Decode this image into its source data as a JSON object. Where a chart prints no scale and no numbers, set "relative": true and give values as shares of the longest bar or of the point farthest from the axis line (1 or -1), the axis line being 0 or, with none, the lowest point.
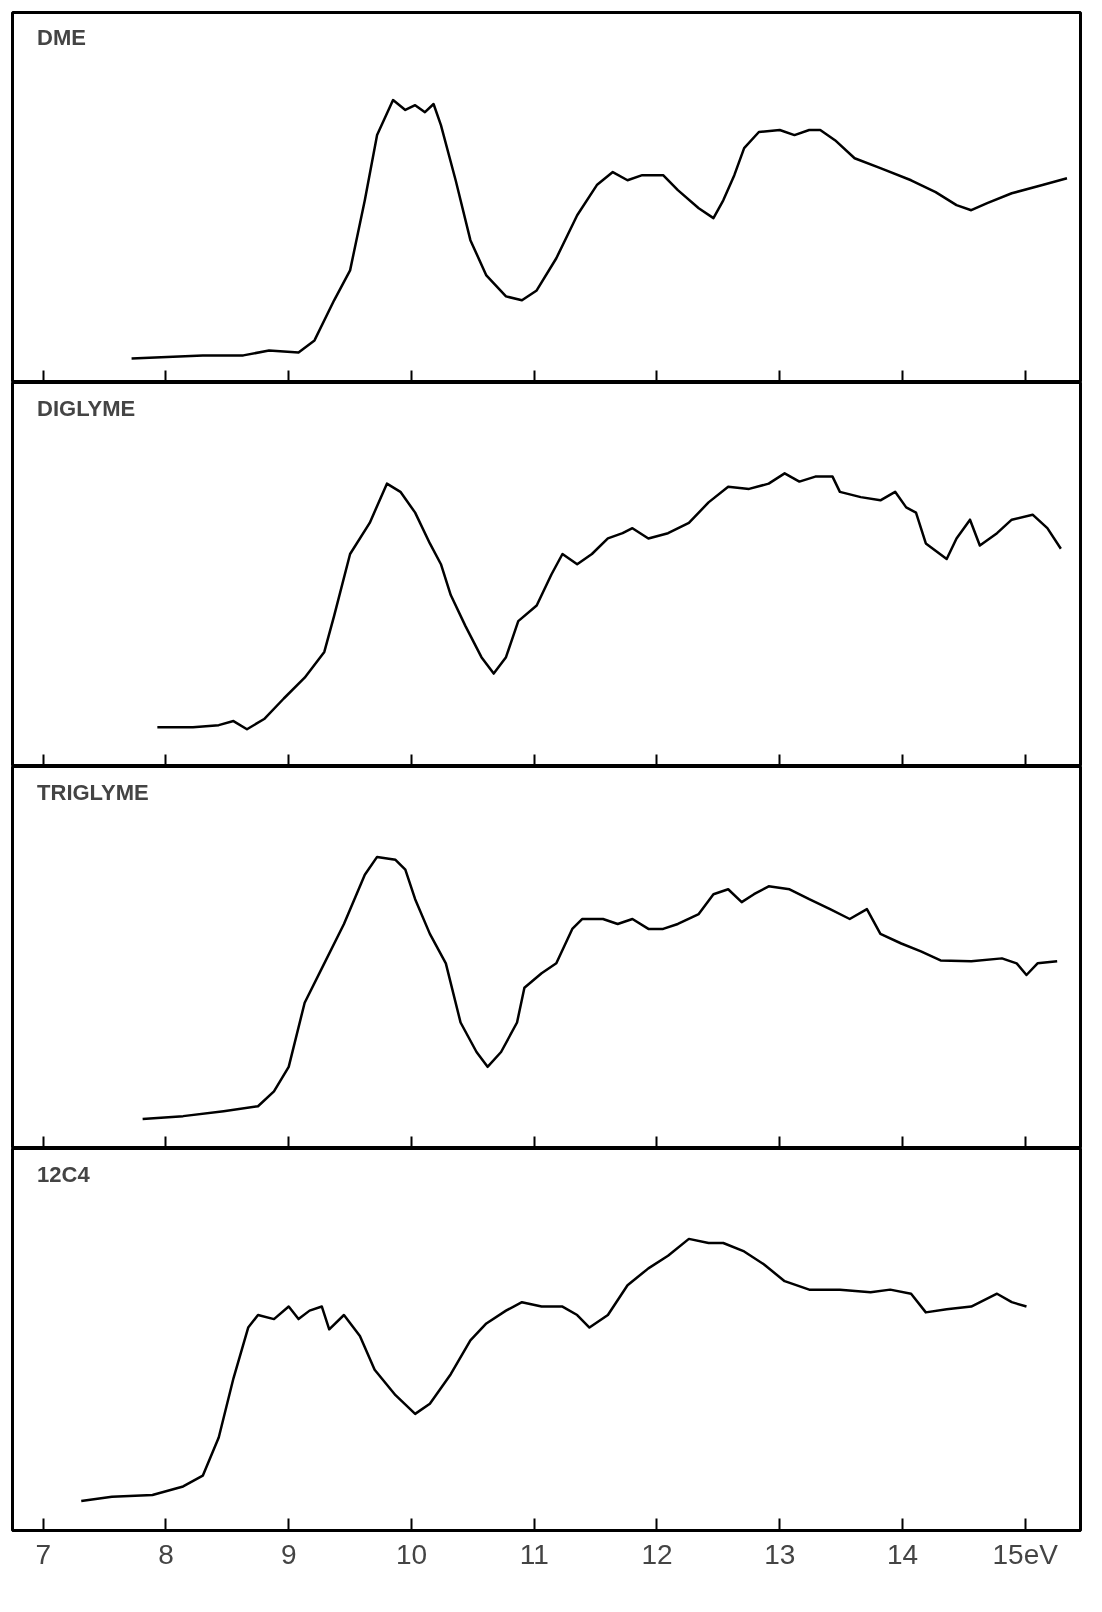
{
  "chart_data": [
    {
      "type": "line",
      "title": "DME",
      "relative": true,
      "grid": false,
      "tick_labels": false,
      "xlim": [
        6.75,
        15.45
      ],
      "xticks": [
        7,
        8,
        9,
        10,
        11,
        12,
        13,
        14,
        15
      ],
      "x": [
        7.72,
        8.3,
        8.63,
        8.84,
        9.08,
        9.21,
        9.37,
        9.5,
        9.62,
        9.72,
        9.85,
        9.95,
        10.03,
        10.11,
        10.18,
        10.24,
        10.36,
        10.48,
        10.61,
        10.77,
        10.9,
        11.02,
        11.18,
        11.35,
        11.51,
        11.64,
        11.76,
        11.88,
        12.05,
        12.17,
        12.34,
        12.46,
        12.54,
        12.63,
        12.71,
        12.83,
        13.0,
        13.12,
        13.24,
        13.33,
        13.45,
        13.61,
        13.82,
        14.07,
        14.27,
        14.44,
        14.56,
        14.69,
        14.89,
        15.14,
        15.34
      ],
      "series": [
        {
          "color": "#000000",
          "values": [
            0.085,
            0.096,
            0.096,
            0.113,
            0.106,
            0.149,
            0.291,
            0.397,
            0.645,
            0.876,
            1.0,
            0.965,
            0.982,
            0.957,
            0.986,
            0.911,
            0.716,
            0.504,
            0.379,
            0.305,
            0.291,
            0.326,
            0.44,
            0.592,
            0.699,
            0.745,
            0.716,
            0.734,
            0.734,
            0.681,
            0.617,
            0.582,
            0.645,
            0.734,
            0.83,
            0.887,
            0.894,
            0.876,
            0.894,
            0.894,
            0.858,
            0.794,
            0.759,
            0.716,
            0.674,
            0.628,
            0.61,
            0.635,
            0.67,
            0.699,
            0.723
          ]
        }
      ]
    },
    {
      "type": "line",
      "title": "DIGLYME",
      "relative": true,
      "grid": false,
      "tick_labels": false,
      "xlim": [
        6.75,
        15.45
      ],
      "xticks": [
        7,
        8,
        9,
        10,
        11,
        12,
        13,
        14,
        15
      ],
      "x": [
        7.93,
        8.22,
        8.43,
        8.55,
        8.66,
        8.8,
        8.96,
        9.13,
        9.29,
        9.37,
        9.5,
        9.66,
        9.8,
        9.91,
        10.03,
        10.15,
        10.24,
        10.32,
        10.44,
        10.57,
        10.67,
        10.77,
        10.87,
        11.02,
        11.14,
        11.23,
        11.35,
        11.47,
        11.6,
        11.72,
        11.8,
        11.93,
        12.09,
        12.26,
        12.42,
        12.58,
        12.75,
        12.91,
        13.04,
        13.16,
        13.29,
        13.43,
        13.49,
        13.66,
        13.82,
        13.94,
        14.03,
        14.11,
        14.19,
        14.36,
        14.44,
        14.55,
        14.63,
        14.77,
        14.89,
        15.06,
        15.18,
        15.29
      ],
      "series": [
        {
          "color": "#000000",
          "values": [
            0.134,
            0.134,
            0.141,
            0.155,
            0.127,
            0.162,
            0.232,
            0.303,
            0.391,
            0.514,
            0.725,
            0.831,
            0.965,
            0.937,
            0.866,
            0.761,
            0.69,
            0.585,
            0.479,
            0.373,
            0.317,
            0.373,
            0.496,
            0.549,
            0.655,
            0.725,
            0.69,
            0.725,
            0.778,
            0.796,
            0.813,
            0.778,
            0.796,
            0.831,
            0.901,
            0.954,
            0.947,
            0.965,
            1.0,
            0.972,
            0.989,
            0.989,
            0.937,
            0.919,
            0.908,
            0.937,
            0.884,
            0.866,
            0.761,
            0.708,
            0.778,
            0.842,
            0.754,
            0.796,
            0.842,
            0.859,
            0.813,
            0.743
          ]
        }
      ]
    },
    {
      "type": "line",
      "title": "TRIGLYME",
      "relative": true,
      "grid": false,
      "tick_labels": false,
      "xlim": [
        6.75,
        15.45
      ],
      "xticks": [
        7,
        8,
        9,
        10,
        11,
        12,
        13,
        14,
        15
      ],
      "x": [
        7.81,
        8.14,
        8.47,
        8.75,
        8.88,
        9.0,
        9.13,
        9.29,
        9.45,
        9.62,
        9.72,
        9.87,
        9.95,
        10.03,
        10.15,
        10.28,
        10.4,
        10.53,
        10.62,
        10.73,
        10.86,
        10.92,
        11.06,
        11.18,
        11.31,
        11.39,
        11.56,
        11.68,
        11.8,
        11.93,
        12.05,
        12.17,
        12.34,
        12.46,
        12.58,
        12.69,
        12.79,
        12.91,
        13.08,
        13.24,
        13.41,
        13.57,
        13.71,
        13.82,
        13.99,
        14.15,
        14.31,
        14.56,
        14.81,
        14.93,
        15.01,
        15.1,
        15.26
      ],
      "series": [
        {
          "color": "#000000",
          "values": [
            0.101,
            0.111,
            0.128,
            0.145,
            0.196,
            0.28,
            0.5,
            0.635,
            0.77,
            0.939,
            1.0,
            0.99,
            0.956,
            0.855,
            0.736,
            0.635,
            0.432,
            0.331,
            0.28,
            0.331,
            0.432,
            0.551,
            0.601,
            0.635,
            0.753,
            0.787,
            0.787,
            0.77,
            0.787,
            0.753,
            0.753,
            0.77,
            0.804,
            0.872,
            0.889,
            0.845,
            0.872,
            0.899,
            0.889,
            0.855,
            0.821,
            0.787,
            0.821,
            0.736,
            0.703,
            0.676,
            0.645,
            0.642,
            0.652,
            0.635,
            0.595,
            0.635,
            0.642
          ]
        }
      ]
    },
    {
      "type": "line",
      "title": "12C4",
      "relative": true,
      "grid": false,
      "tick_labels": "x",
      "xlim": [
        6.75,
        15.45
      ],
      "xticks": [
        7,
        8,
        9,
        10,
        11,
        12,
        13,
        14,
        {
          "value": 15,
          "label": "15eV"
        }
      ],
      "x": [
        7.31,
        7.56,
        7.89,
        8.14,
        8.3,
        8.43,
        8.55,
        8.67,
        8.75,
        8.88,
        9.0,
        9.08,
        9.17,
        9.27,
        9.33,
        9.45,
        9.58,
        9.7,
        9.87,
        10.03,
        10.15,
        10.32,
        10.48,
        10.61,
        10.77,
        10.9,
        11.06,
        11.23,
        11.35,
        11.45,
        11.6,
        11.76,
        11.93,
        12.09,
        12.26,
        12.42,
        12.54,
        12.71,
        12.87,
        13.04,
        13.24,
        13.49,
        13.74,
        13.9,
        14.07,
        14.19,
        14.36,
        14.56,
        14.77,
        14.89,
        15.01
      ],
      "series": [
        {
          "color": "#000000",
          "values": [
            0.101,
            0.116,
            0.122,
            0.151,
            0.188,
            0.319,
            0.522,
            0.696,
            0.739,
            0.725,
            0.768,
            0.725,
            0.754,
            0.768,
            0.69,
            0.739,
            0.667,
            0.551,
            0.464,
            0.4,
            0.435,
            0.536,
            0.652,
            0.71,
            0.754,
            0.783,
            0.768,
            0.768,
            0.739,
            0.696,
            0.739,
            0.841,
            0.899,
            0.942,
            1.0,
            0.986,
            0.986,
            0.957,
            0.913,
            0.855,
            0.826,
            0.826,
            0.817,
            0.826,
            0.812,
            0.748,
            0.759,
            0.768,
            0.812,
            0.783,
            0.768
          ]
        }
      ]
    }
  ]
}
